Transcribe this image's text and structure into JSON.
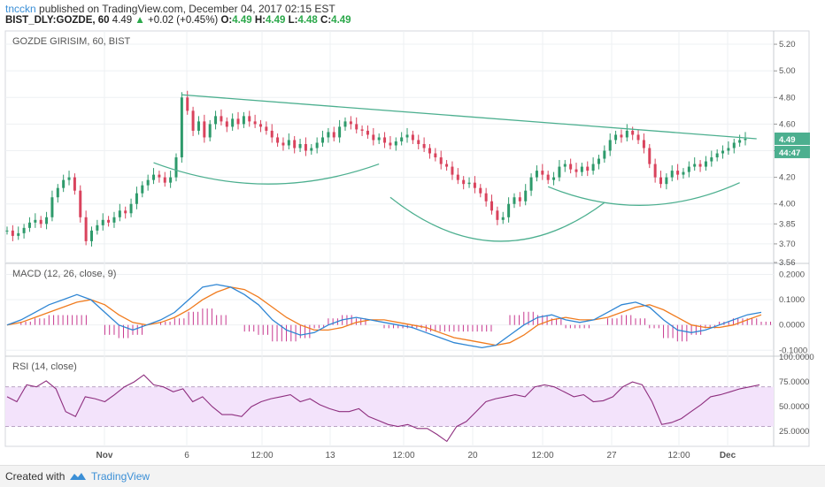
{
  "header": {
    "username": "tncckn",
    "published_text": "published on TradingView.com, December 04, 2017 02:15 EST",
    "symbol": "BIST_DLY:GOZDE, 60",
    "last": "4.49",
    "change": "+0.02 (+0.45%)",
    "o_label": "O:",
    "o_value": "4.49",
    "h_label": "H:",
    "h_value": "4.49",
    "l_label": "L:",
    "l_value": "4.48",
    "c_label": "C:",
    "c_value": "4.49"
  },
  "footer": {
    "created_with": "Created with",
    "brand": "TradingView"
  },
  "colors": {
    "up": "#2e9a6b",
    "down": "#d9435d",
    "trend": "#4caf8f",
    "macd": "#2f86d4",
    "signal": "#f07b1e",
    "hist": "#c7388f",
    "rsi": "#8e2f7f",
    "rsi_band": "#f3e3fb",
    "grid": "#eef0f3",
    "price_badge": "#4caf8f"
  },
  "chart_data": [
    {
      "type": "candlestick",
      "title": "GOZDE GIRISIM, 60, BIST",
      "ylim": [
        3.56,
        5.3
      ],
      "y_ticks": [
        "5.20",
        "5.00",
        "4.80",
        "4.60",
        "4.40",
        "4.20",
        "4.00",
        "3.85",
        "3.70",
        "3.56"
      ],
      "x_ticks": [
        "Nov",
        "6",
        "12:00",
        "13",
        "12:00",
        "20",
        "12:00",
        "27",
        "12:00",
        "Dec"
      ],
      "last_price_label": "4.49",
      "countdown_label": "44:47",
      "close_series": [
        3.8,
        3.76,
        3.78,
        3.82,
        3.86,
        3.88,
        3.85,
        3.9,
        4.05,
        4.12,
        4.18,
        4.2,
        4.1,
        3.9,
        3.72,
        3.8,
        3.84,
        3.88,
        3.86,
        3.9,
        3.95,
        3.93,
        4.0,
        4.08,
        4.14,
        4.18,
        4.22,
        4.2,
        4.16,
        4.2,
        4.35,
        4.8,
        4.7,
        4.55,
        4.62,
        4.5,
        4.6,
        4.66,
        4.62,
        4.58,
        4.64,
        4.6,
        4.66,
        4.62,
        4.6,
        4.58,
        4.55,
        4.5,
        4.46,
        4.44,
        4.48,
        4.42,
        4.45,
        4.4,
        4.42,
        4.46,
        4.5,
        4.54,
        4.5,
        4.58,
        4.62,
        4.6,
        4.56,
        4.55,
        4.52,
        4.48,
        4.5,
        4.46,
        4.44,
        4.47,
        4.5,
        4.52,
        4.48,
        4.45,
        4.42,
        4.38,
        4.35,
        4.3,
        4.28,
        4.22,
        4.18,
        4.15,
        4.16,
        4.12,
        4.08,
        4.02,
        3.95,
        3.88,
        3.9,
        4.0,
        4.05,
        4.02,
        4.1,
        4.2,
        4.25,
        4.22,
        4.18,
        4.2,
        4.28,
        4.3,
        4.26,
        4.24,
        4.28,
        4.25,
        4.3,
        4.34,
        4.4,
        4.48,
        4.52,
        4.5,
        4.55,
        4.52,
        4.48,
        4.42,
        4.3,
        4.2,
        4.15,
        4.2,
        4.25,
        4.22,
        4.24,
        4.28,
        4.3,
        4.28,
        4.32,
        4.35,
        4.38,
        4.4,
        4.42,
        4.46,
        4.48,
        4.49
      ],
      "trend_line": [
        [
          31,
          4.82
        ],
        [
          133,
          4.49
        ]
      ],
      "arcs": [
        {
          "from": [
            26,
            4.31
          ],
          "to": [
            66,
            4.3
          ],
          "bottom": 4.15
        },
        {
          "from": [
            68,
            4.05
          ],
          "to": [
            106,
            4.01
          ],
          "bottom": 3.72
        },
        {
          "from": [
            96,
            4.13
          ],
          "to": [
            130,
            4.16
          ],
          "bottom": 3.99
        }
      ]
    },
    {
      "type": "line",
      "title": "MACD (12, 26, close, 9)",
      "ylim": [
        -0.12,
        0.24
      ],
      "y_ticks": [
        "0.2000",
        "0.1000",
        "0.0000",
        "-0.1000"
      ],
      "series": [
        {
          "name": "MACD",
          "values": [
            0.0,
            0.02,
            0.05,
            0.08,
            0.1,
            0.12,
            0.1,
            0.05,
            0.0,
            -0.02,
            0.0,
            0.02,
            0.05,
            0.1,
            0.15,
            0.16,
            0.15,
            0.12,
            0.08,
            0.02,
            -0.02,
            -0.04,
            -0.03,
            0.0,
            0.02,
            0.03,
            0.02,
            0.01,
            0.0,
            -0.01,
            -0.03,
            -0.05,
            -0.07,
            -0.08,
            -0.09,
            -0.08,
            -0.04,
            0.0,
            0.03,
            0.04,
            0.02,
            0.01,
            0.02,
            0.05,
            0.08,
            0.09,
            0.07,
            0.02,
            -0.02,
            -0.03,
            -0.02,
            0.0,
            0.02,
            0.04,
            0.05
          ]
        },
        {
          "name": "Signal",
          "values": [
            0.0,
            0.01,
            0.03,
            0.05,
            0.07,
            0.09,
            0.1,
            0.08,
            0.04,
            0.01,
            0.0,
            0.01,
            0.03,
            0.06,
            0.1,
            0.13,
            0.15,
            0.14,
            0.11,
            0.07,
            0.03,
            0.0,
            -0.02,
            -0.02,
            -0.01,
            0.01,
            0.02,
            0.02,
            0.01,
            0.0,
            -0.01,
            -0.03,
            -0.05,
            -0.06,
            -0.07,
            -0.08,
            -0.07,
            -0.04,
            0.0,
            0.02,
            0.03,
            0.02,
            0.02,
            0.03,
            0.05,
            0.07,
            0.08,
            0.06,
            0.03,
            0.0,
            -0.01,
            -0.01,
            0.0,
            0.02,
            0.04
          ]
        }
      ]
    },
    {
      "type": "line",
      "title": "RSI (14, close)",
      "ylim": [
        10,
        100
      ],
      "band": [
        30,
        70
      ],
      "y_ticks": [
        "100.0000",
        "75.0000",
        "50.0000",
        "25.0000"
      ],
      "series": [
        {
          "name": "RSI",
          "values": [
            60,
            55,
            72,
            70,
            76,
            68,
            45,
            40,
            60,
            58,
            55,
            62,
            70,
            75,
            82,
            72,
            70,
            65,
            68,
            55,
            60,
            50,
            42,
            42,
            40,
            50,
            55,
            58,
            60,
            62,
            55,
            58,
            52,
            48,
            45,
            45,
            48,
            40,
            36,
            32,
            30,
            32,
            28,
            28,
            22,
            15,
            30,
            35,
            45,
            55,
            58,
            60,
            62,
            60,
            70,
            72,
            70,
            65,
            60,
            62,
            55,
            56,
            60,
            70,
            75,
            72,
            55,
            32,
            34,
            38,
            45,
            52,
            60,
            62,
            65,
            68,
            70,
            72
          ]
        }
      ]
    }
  ]
}
